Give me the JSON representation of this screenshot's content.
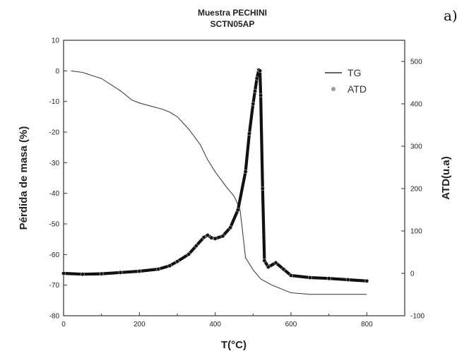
{
  "panel_label": "a)",
  "chart_data": {
    "type": "line",
    "title": "Muestra PECHINI",
    "subtitle": "SCTN05AP",
    "xlabel": "T(°C)",
    "ylabel": "Pérdida de masa (%)",
    "y2label": "ATD(u.a)",
    "xlim": [
      0,
      900
    ],
    "ylim": [
      -80,
      10
    ],
    "y2lim": [
      -100,
      550
    ],
    "x_ticks": [
      "0",
      "200",
      "400",
      "600",
      "800"
    ],
    "y_ticks": [
      "10",
      "0",
      "-10",
      "-20",
      "-30",
      "-40",
      "-50",
      "-60",
      "-70",
      "-80"
    ],
    "y2_ticks": [
      "500",
      "400",
      "300",
      "200",
      "100",
      "0",
      "-100"
    ],
    "grid": false,
    "legend_position": "top-right",
    "series": [
      {
        "name": "TG",
        "axis": "left",
        "style": "line",
        "color": "#444444",
        "x": [
          20,
          50,
          100,
          150,
          180,
          200,
          230,
          260,
          280,
          300,
          330,
          360,
          380,
          400,
          430,
          450,
          465,
          470,
          480,
          500,
          520,
          550,
          600,
          650,
          700,
          750,
          800
        ],
        "y": [
          0,
          -0.5,
          -2.5,
          -6.5,
          -9.5,
          -10.5,
          -11.5,
          -12.5,
          -13.5,
          -15,
          -19,
          -24,
          -29,
          -33,
          -38,
          -41,
          -45,
          -50,
          -61,
          -65,
          -68,
          -70,
          -72.5,
          -73,
          -73,
          -73,
          -73
        ]
      },
      {
        "name": "ATD",
        "axis": "right",
        "style": "scatter",
        "color": "#111111",
        "x": [
          0,
          50,
          100,
          150,
          200,
          250,
          280,
          300,
          330,
          350,
          370,
          380,
          390,
          400,
          420,
          440,
          460,
          480,
          490,
          500,
          505,
          510,
          515,
          518,
          520,
          525,
          530,
          540,
          560,
          580,
          600,
          650,
          700,
          750,
          800
        ],
        "y": [
          0,
          -2,
          -1,
          2,
          5,
          10,
          18,
          28,
          45,
          65,
          85,
          90,
          84,
          82,
          88,
          108,
          150,
          240,
          330,
          400,
          430,
          460,
          480,
          478,
          420,
          200,
          30,
          15,
          25,
          10,
          -5,
          -10,
          -12,
          -15,
          -18
        ]
      }
    ]
  }
}
